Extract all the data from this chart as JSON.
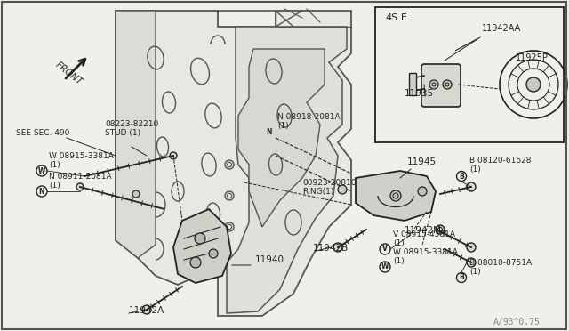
{
  "bg_color": "#f0f0eb",
  "border_color": "#555555",
  "line_color": "#666666",
  "dark_color": "#222222",
  "med_color": "#555555",
  "watermark": "A/93^0.75",
  "labels": {
    "front": "FRONT",
    "see_sec": "SEE SEC. 490",
    "stud": "08223-82210\nSTUD (1)",
    "w1": "W 08915-3381A\n(1)",
    "n1": "N 08911-2081A\n(1)",
    "part11940": "11940",
    "part11942A": "11942A",
    "part11942AA": "11942AA",
    "part11935": "11935",
    "part11925P": "11925P",
    "part4SE": "4S.E",
    "n2": "N 08918-2081A\n(1)",
    "ring": "00923-20810\nRING(1)",
    "part11945": "11945",
    "part11942B": "11942B",
    "part11942M": "11942M",
    "b1": "B 08120-61628\n(1)",
    "v1": "V 08915-4381A\n(1)",
    "w2": "W 08915-3381A\n(1)",
    "b2": "B 08010-8751A\n(1)"
  }
}
